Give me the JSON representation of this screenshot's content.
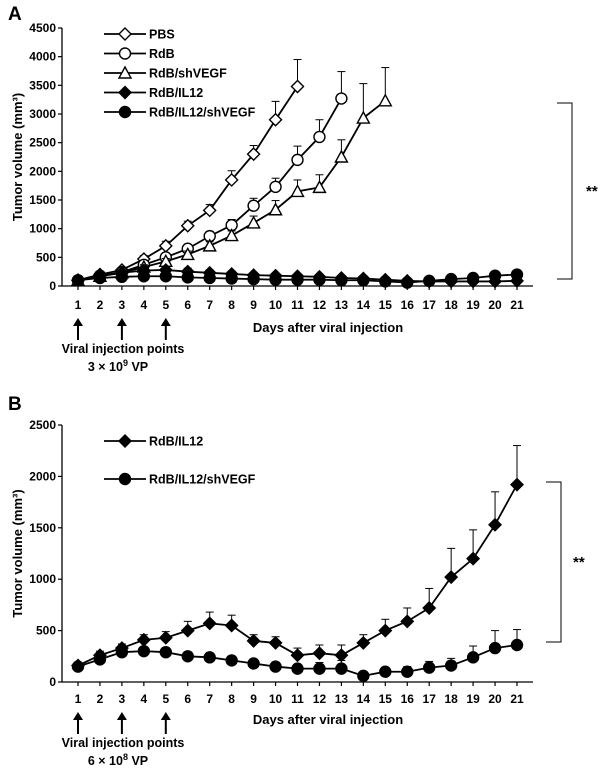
{
  "chart_data": [
    {
      "panel": "A",
      "type": "line",
      "xlabel": "Days after viral injection",
      "ylabel": "Tumor volume (mm³)",
      "ylim": [
        0,
        4500
      ],
      "yticks": [
        0,
        500,
        1000,
        1500,
        2000,
        2500,
        3000,
        3500,
        4000,
        4500
      ],
      "x_ticks": [
        1,
        2,
        3,
        4,
        5,
        6,
        7,
        8,
        9,
        10,
        11,
        12,
        13,
        14,
        15,
        16,
        17,
        18,
        19,
        20,
        21
      ],
      "legend_position": "top-left",
      "series": [
        {
          "name": "PBS",
          "marker": "diamond-open",
          "x": [
            1,
            2,
            3,
            4,
            5,
            6,
            7,
            8,
            9,
            10,
            11
          ],
          "values": [
            100,
            200,
            280,
            470,
            700,
            1050,
            1320,
            1850,
            2300,
            2900,
            3480
          ],
          "errors": [
            20,
            30,
            40,
            60,
            80,
            80,
            100,
            160,
            150,
            320,
            470
          ]
        },
        {
          "name": "RdB",
          "marker": "circle-open",
          "x": [
            1,
            2,
            3,
            4,
            5,
            6,
            7,
            8,
            9,
            10,
            11,
            12,
            13
          ],
          "values": [
            100,
            180,
            240,
            370,
            500,
            650,
            870,
            1060,
            1400,
            1730,
            2200,
            2600,
            3270
          ],
          "errors": [
            20,
            25,
            30,
            40,
            50,
            60,
            80,
            100,
            130,
            150,
            240,
            300,
            470
          ]
        },
        {
          "name": "RdB/shVEGF",
          "marker": "triangle-open",
          "x": [
            1,
            2,
            3,
            4,
            5,
            6,
            7,
            8,
            9,
            10,
            11,
            12,
            13,
            14,
            15
          ],
          "values": [
            100,
            170,
            230,
            330,
            430,
            550,
            700,
            880,
            1100,
            1330,
            1650,
            1720,
            2250,
            2930,
            3230
          ],
          "errors": [
            20,
            25,
            30,
            40,
            50,
            60,
            70,
            80,
            120,
            160,
            200,
            220,
            300,
            600,
            580
          ]
        },
        {
          "name": "RdB/IL12",
          "marker": "diamond-filled",
          "x": [
            1,
            2,
            3,
            4,
            5,
            6,
            7,
            8,
            9,
            10,
            11,
            12,
            13,
            14,
            15,
            16,
            17,
            18,
            19,
            20,
            21
          ],
          "values": [
            100,
            180,
            230,
            270,
            280,
            250,
            230,
            210,
            190,
            180,
            170,
            160,
            140,
            130,
            110,
            90,
            80,
            80,
            80,
            80,
            90
          ],
          "errors": [
            20,
            30,
            40,
            50,
            60,
            60,
            50,
            50,
            40,
            40,
            40,
            30,
            30,
            30,
            30,
            20,
            20,
            20,
            20,
            20,
            20
          ]
        },
        {
          "name": "RdB/IL12/shVEGF",
          "marker": "circle-filled",
          "x": [
            1,
            2,
            3,
            4,
            5,
            6,
            7,
            8,
            9,
            10,
            11,
            12,
            13,
            14,
            15,
            16,
            17,
            18,
            19,
            20,
            21
          ],
          "values": [
            100,
            140,
            160,
            170,
            170,
            150,
            140,
            130,
            120,
            110,
            110,
            110,
            100,
            100,
            80,
            60,
            90,
            120,
            140,
            180,
            200
          ],
          "errors": [
            20,
            30,
            40,
            40,
            40,
            30,
            30,
            30,
            30,
            30,
            30,
            30,
            30,
            20,
            20,
            20,
            20,
            30,
            30,
            40,
            40
          ]
        }
      ],
      "annotations": {
        "injection_days": [
          1,
          3,
          5
        ],
        "injection_label": "Viral injection points",
        "dose_prefix": "3 × 10",
        "dose_exp": "9",
        "dose_unit": " VP",
        "significance": "**"
      }
    },
    {
      "panel": "B",
      "type": "line",
      "xlabel": "Days after viral injection",
      "ylabel": "Tumor volume (mm³)",
      "ylim": [
        0,
        2500
      ],
      "yticks": [
        0,
        500,
        1000,
        1500,
        2000,
        2500
      ],
      "x_ticks": [
        1,
        2,
        3,
        4,
        5,
        6,
        7,
        8,
        9,
        10,
        11,
        12,
        13,
        14,
        15,
        16,
        17,
        18,
        19,
        20,
        21
      ],
      "legend_position": "top-left",
      "series": [
        {
          "name": "RdB/IL12",
          "marker": "diamond-filled",
          "x": [
            1,
            2,
            3,
            4,
            5,
            6,
            7,
            8,
            9,
            10,
            11,
            12,
            13,
            14,
            15,
            16,
            17,
            18,
            19,
            20,
            21
          ],
          "values": [
            160,
            260,
            330,
            410,
            430,
            500,
            570,
            550,
            400,
            380,
            260,
            280,
            260,
            380,
            500,
            590,
            720,
            1020,
            1200,
            1530,
            1920
          ],
          "errors": [
            30,
            40,
            40,
            50,
            60,
            90,
            110,
            100,
            60,
            60,
            70,
            80,
            100,
            80,
            110,
            130,
            190,
            280,
            280,
            320,
            380
          ]
        },
        {
          "name": "RdB/IL12/shVEGF",
          "marker": "circle-filled",
          "x": [
            1,
            2,
            3,
            4,
            5,
            6,
            7,
            8,
            9,
            10,
            11,
            12,
            13,
            14,
            15,
            16,
            17,
            18,
            19,
            20,
            21
          ],
          "values": [
            150,
            220,
            290,
            300,
            290,
            250,
            240,
            210,
            180,
            150,
            130,
            130,
            130,
            60,
            100,
            100,
            140,
            160,
            240,
            330,
            360
          ],
          "errors": [
            20,
            30,
            40,
            40,
            40,
            40,
            40,
            40,
            40,
            40,
            40,
            60,
            80,
            30,
            40,
            50,
            60,
            70,
            110,
            170,
            150
          ]
        }
      ],
      "annotations": {
        "injection_days": [
          1,
          3,
          5
        ],
        "injection_label": "Viral injection points",
        "dose_prefix": "6 × 10",
        "dose_exp": "8",
        "dose_unit": " VP",
        "significance": "**"
      }
    }
  ]
}
